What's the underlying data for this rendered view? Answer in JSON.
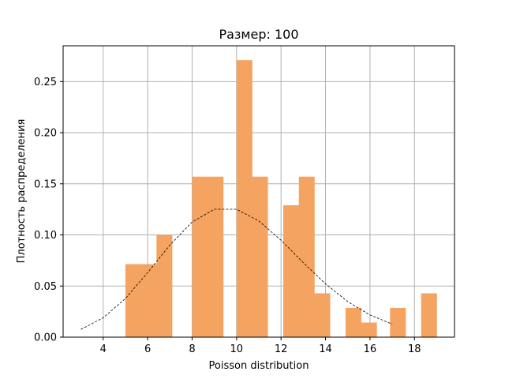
{
  "chart_data": {
    "type": "bar",
    "title": "Размер: 100",
    "xlabel": "Poisson distribution",
    "ylabel": "Плотность распределения",
    "xlim": [
      2.2,
      19.8
    ],
    "ylim": [
      0,
      0.285
    ],
    "xticks": [
      4,
      6,
      8,
      10,
      12,
      14,
      16,
      18
    ],
    "xtick_labels": [
      "4",
      "6",
      "8",
      "10",
      "12",
      "14",
      "16",
      "18"
    ],
    "yticks": [
      0.0,
      0.05,
      0.1,
      0.15,
      0.2,
      0.25
    ],
    "ytick_labels": [
      "0.00",
      "0.05",
      "0.10",
      "0.15",
      "0.20",
      "0.25"
    ],
    "grid": true,
    "colors": {
      "bars": "#f4a460",
      "pmf_line": "#000000",
      "grid": "#b0b0b0"
    },
    "histogram": {
      "bin_width": 0.7,
      "bins": [
        {
          "x0": 5.0,
          "value": 0.0714
        },
        {
          "x0": 5.7,
          "value": 0.0714
        },
        {
          "x0": 6.4,
          "value": 0.1
        },
        {
          "x0": 8.0,
          "value": 0.157
        },
        {
          "x0": 8.7,
          "value": 0.157
        },
        {
          "x0": 10.0,
          "value": 0.271
        },
        {
          "x0": 10.7,
          "value": 0.157
        },
        {
          "x0": 12.1,
          "value": 0.129
        },
        {
          "x0": 12.8,
          "value": 0.157
        },
        {
          "x0": 13.5,
          "value": 0.0429
        },
        {
          "x0": 14.9,
          "value": 0.0286
        },
        {
          "x0": 15.6,
          "value": 0.0143
        },
        {
          "x0": 16.9,
          "value": 0.0286
        },
        {
          "x0": 18.3,
          "value": 0.0429
        }
      ]
    },
    "pmf_line": {
      "style": "dashed",
      "x": [
        3,
        4,
        5,
        6,
        7,
        8,
        9,
        10,
        11,
        12,
        13,
        14,
        15,
        16,
        17
      ],
      "y": [
        0.0076,
        0.0189,
        0.0378,
        0.0631,
        0.0901,
        0.1126,
        0.1251,
        0.1251,
        0.1137,
        0.0948,
        0.0729,
        0.0521,
        0.0347,
        0.0217,
        0.0128
      ]
    }
  }
}
